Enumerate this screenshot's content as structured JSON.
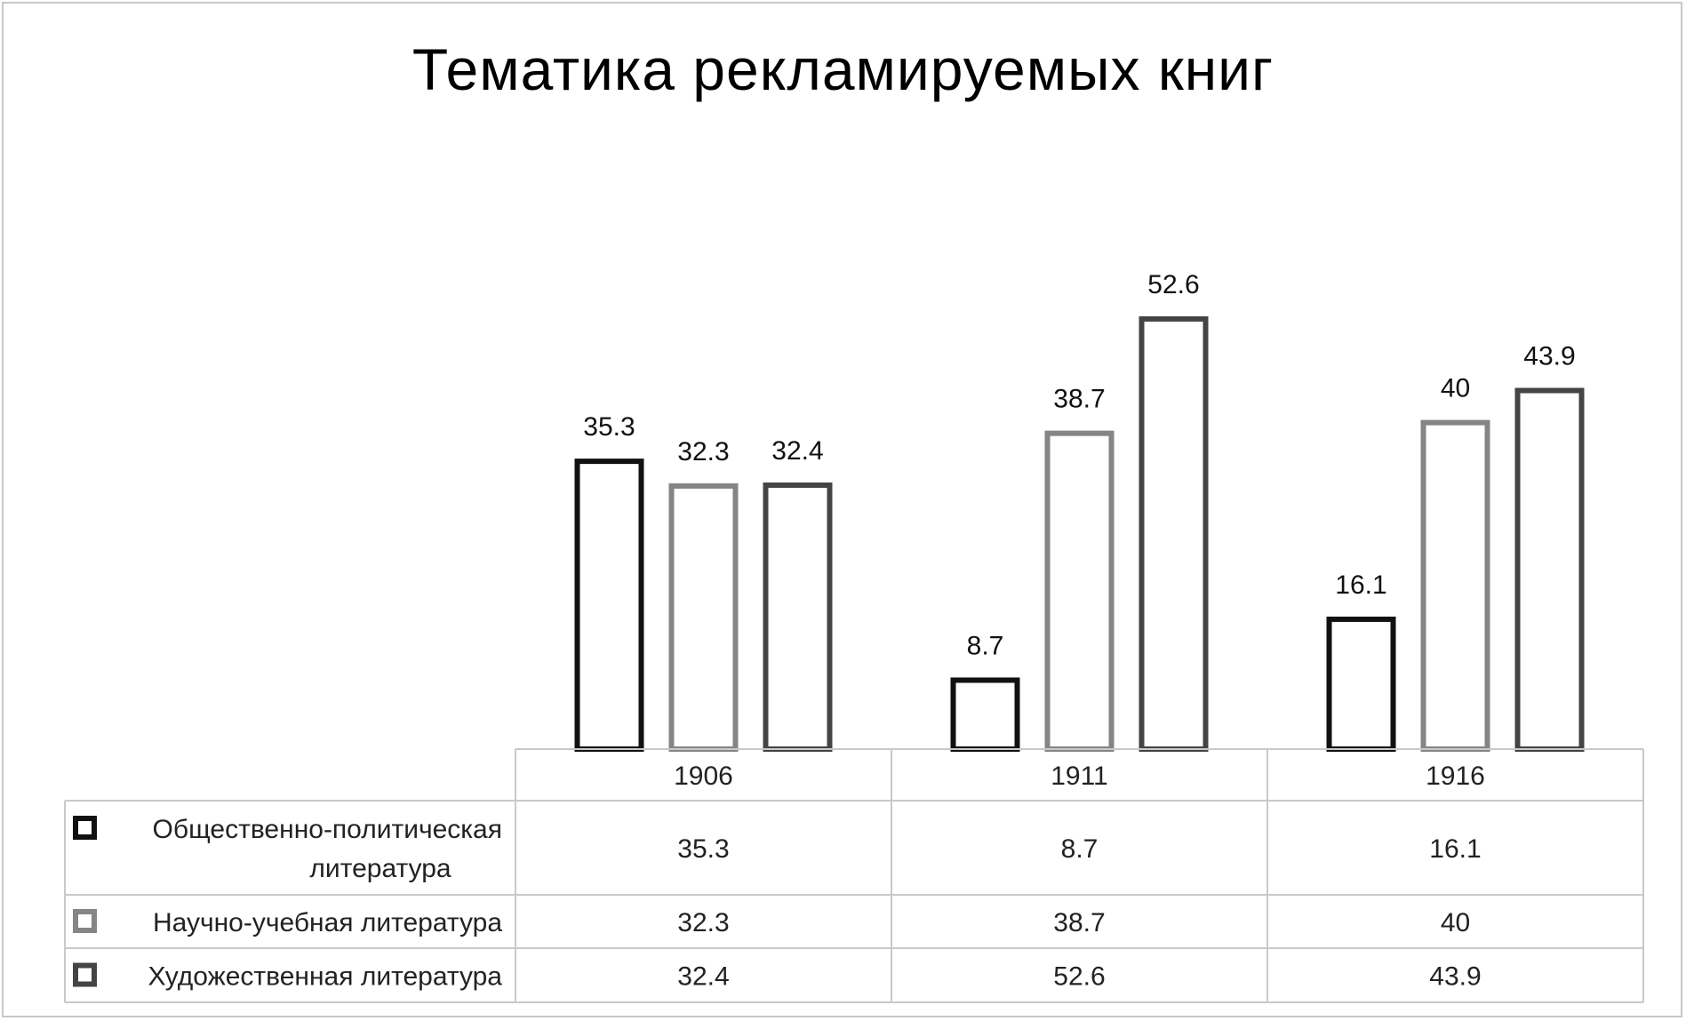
{
  "chart_data": {
    "type": "bar",
    "title": "Тематика рекламируемых книг",
    "categories": [
      "1906",
      "1911",
      "1916"
    ],
    "series": [
      {
        "name": "Общественно-политическая литература",
        "name_lines": [
          "Общественно-политическая",
          "литература"
        ],
        "values": [
          35.3,
          8.7,
          16.1
        ],
        "color": "#111111"
      },
      {
        "name": "Научно-учебная литература",
        "name_lines": [
          "Научно-учебная литература"
        ],
        "values": [
          32.3,
          38.7,
          40
        ],
        "color": "#858585"
      },
      {
        "name": "Художественная литература",
        "name_lines": [
          "Художественная литература"
        ],
        "values": [
          32.4,
          52.6,
          43.9
        ],
        "color": "#444444"
      }
    ],
    "value_labels": [
      [
        "35.3",
        "8.7",
        "16.1"
      ],
      [
        "32.3",
        "38.7",
        "40"
      ],
      [
        "32.4",
        "52.6",
        "43.9"
      ]
    ],
    "ylim": [
      0,
      60
    ],
    "grid": false,
    "legend": "data-table"
  }
}
